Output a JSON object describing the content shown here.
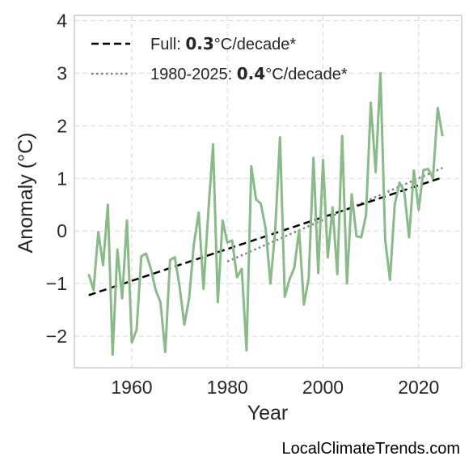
{
  "chart_data": {
    "type": "line",
    "xlabel": "Year",
    "ylabel": "Anomaly (°C)",
    "xlim": [
      1948,
      2029
    ],
    "ylim": [
      -2.6,
      4.1
    ],
    "xticks": [
      1960,
      1980,
      2000,
      2020
    ],
    "yticks": [
      -2,
      -1,
      0,
      1,
      2,
      3,
      4
    ],
    "ytick_labels": [
      "−2",
      "−1",
      "0",
      "1",
      "2",
      "3",
      "4"
    ],
    "grid": true,
    "legend_position": "top-left",
    "colors": {
      "series": "#88bb88",
      "full_trend": "#000000",
      "recent_trend": "#808080",
      "grid": "#d9d9d9",
      "axes": "#cccccc"
    },
    "series": [
      {
        "x": [
          1951,
          1952,
          1953,
          1954,
          1955,
          1956,
          1957,
          1958,
          1959,
          1960,
          1961,
          1962,
          1963,
          1964,
          1965,
          1966,
          1967,
          1968,
          1969,
          1970,
          1971,
          1972,
          1973,
          1974,
          1975,
          1976,
          1977,
          1978,
          1979,
          1980,
          1981,
          1982,
          1983,
          1984,
          1985,
          1986,
          1987,
          1988,
          1989,
          1990,
          1991,
          1992,
          1993,
          1994,
          1995,
          1996,
          1997,
          1998,
          1999,
          2000,
          2001,
          2002,
          2003,
          2004,
          2005,
          2006,
          2007,
          2008,
          2009,
          2010,
          2011,
          2012,
          2013,
          2014,
          2015,
          2016,
          2017,
          2018,
          2019,
          2020,
          2021,
          2022,
          2023,
          2024,
          2025
        ],
        "values": [
          -0.82,
          -1.12,
          -0.02,
          -0.65,
          0.5,
          -2.35,
          -0.35,
          -1.28,
          0.2,
          -2.12,
          -1.88,
          -0.48,
          -0.43,
          -0.72,
          -1.12,
          -1.35,
          -2.3,
          -0.55,
          -0.5,
          -1.05,
          -1.78,
          -1.28,
          -0.25,
          0.35,
          -1.1,
          0.35,
          1.65,
          -1.35,
          0.2,
          -0.22,
          -0.18,
          -0.88,
          -0.72,
          -2.27,
          1.23,
          0.6,
          0.52,
          0.05,
          -1.0,
          0.02,
          1.78,
          -1.25,
          -0.92,
          -0.7,
          0.02,
          -1.4,
          -0.9,
          1.39,
          -0.8,
          1.35,
          -0.5,
          0.45,
          -0.82,
          1.81,
          -1.0,
          0.7,
          -0.1,
          -0.12,
          0.3,
          2.44,
          1.12,
          3.0,
          -0.17,
          -0.93,
          0.5,
          0.92,
          0.75,
          -0.12,
          1.15,
          0.4,
          1.16,
          1.18,
          1.0,
          2.34,
          1.8
        ]
      }
    ],
    "trend_lines": [
      {
        "label_prefix": "Full: ",
        "rate": "0.3",
        "label_suffix": "°C/decade*",
        "x": [
          1951,
          2025
        ],
        "y": [
          -1.22,
          1.02
        ]
      },
      {
        "label_prefix": "1980-2025: ",
        "rate": "0.4",
        "label_suffix": "°C/decade*",
        "x": [
          1980,
          2025
        ],
        "y": [
          -0.58,
          1.2
        ]
      }
    ]
  },
  "footer": {
    "source": "LocalClimateTrends.com"
  }
}
